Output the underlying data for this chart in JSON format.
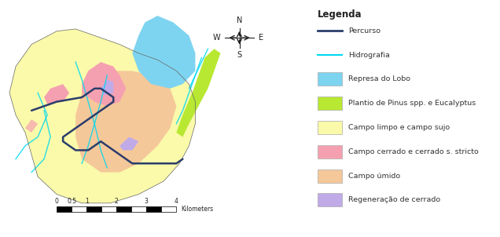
{
  "background_color": "#ffffff",
  "legend_title": "Legenda",
  "legend_items": [
    {
      "type": "line",
      "color": "#2b3d6b",
      "label": "Percurso",
      "linewidth": 2.0
    },
    {
      "type": "line",
      "color": "#00d8f0",
      "label": "Hidrografia",
      "linewidth": 1.5
    },
    {
      "type": "patch",
      "color": "#7dd4f0",
      "label": "Represa do Lobo"
    },
    {
      "type": "patch",
      "color": "#b8e832",
      "label": "Plantio de Pinus spp. e Eucalyptus"
    },
    {
      "type": "patch",
      "color": "#fafaaa",
      "label": "Campo limpo e campo sujo"
    },
    {
      "type": "patch",
      "color": "#f5a0b0",
      "label": "Campo cerrado e cerrado s. stricto"
    },
    {
      "type": "patch",
      "color": "#f5c89a",
      "label": "Campo úmido"
    },
    {
      "type": "patch",
      "color": "#c0aae8",
      "label": "Regeneração de cerrado"
    }
  ],
  "map_colors": {
    "represa": "#7dd4f0",
    "pinus": "#b8e832",
    "campo_limpo": "#fafaaa",
    "campo_cerrado": "#f5a0b0",
    "campo_umido": "#f5c89a",
    "regeneracao": "#c0aae8",
    "percurso": "#2b3d6b",
    "hidrografia": "#00d8f0"
  },
  "figsize": [
    6.36,
    3.02
  ],
  "dpi": 100
}
